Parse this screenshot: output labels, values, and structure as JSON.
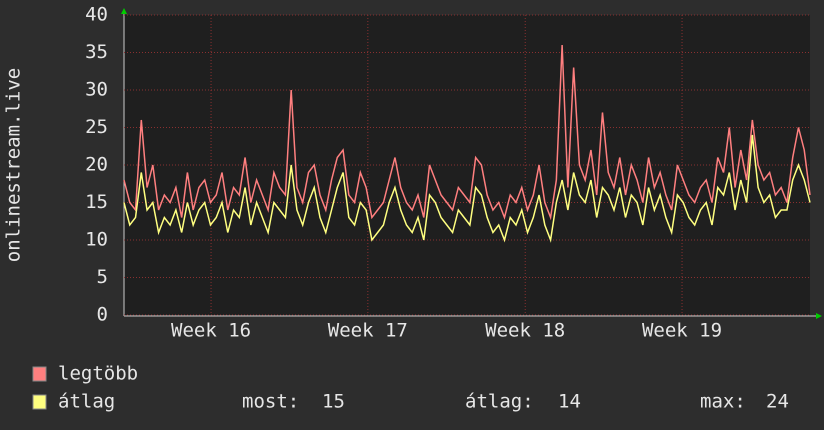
{
  "chart_data": {
    "type": "line",
    "y_label": "onlinestream.live",
    "ylim": [
      0,
      40
    ],
    "yticks": [
      0,
      5,
      10,
      15,
      20,
      25,
      30,
      35,
      40
    ],
    "grid": true,
    "xlim": [
      0,
      119
    ],
    "xticks": [
      {
        "value": 15.1,
        "label": "Week 16"
      },
      {
        "value": 42.3,
        "label": "Week 17"
      },
      {
        "value": 69.6,
        "label": "Week 18"
      },
      {
        "value": 96.8,
        "label": "Week 19"
      }
    ],
    "series": [
      {
        "name": "legtöbb",
        "color": "#ff7f7f",
        "values": [
          18,
          15,
          14,
          26,
          17,
          20,
          14,
          16,
          15,
          17,
          13,
          19,
          14,
          17,
          18,
          15,
          16,
          19,
          14,
          17,
          16,
          21,
          15,
          18,
          16,
          14,
          19,
          17,
          16,
          30,
          17,
          15,
          19,
          20,
          16,
          14,
          18,
          21,
          22,
          16,
          15,
          19,
          17,
          13,
          14,
          15,
          18,
          21,
          17,
          15,
          14,
          16,
          13,
          20,
          18,
          16,
          15,
          14,
          17,
          16,
          15,
          21,
          20,
          16,
          14,
          15,
          13,
          16,
          15,
          17,
          14,
          16,
          20,
          15,
          13,
          18,
          36,
          17,
          33,
          20,
          18,
          22,
          16,
          27,
          19,
          17,
          21,
          16,
          20,
          18,
          15,
          21,
          17,
          19,
          16,
          14,
          20,
          18,
          16,
          15,
          17,
          18,
          15,
          21,
          19,
          25,
          17,
          22,
          18,
          26,
          20,
          18,
          19,
          16,
          17,
          15,
          21,
          25,
          22,
          16
        ]
      },
      {
        "name": "átlag",
        "color": "#ffff80",
        "values": [
          15,
          12,
          13,
          19,
          14,
          15,
          11,
          13,
          12,
          14,
          11,
          15,
          12,
          14,
          15,
          12,
          13,
          15,
          11,
          14,
          13,
          17,
          12,
          15,
          13,
          11,
          15,
          14,
          13,
          20,
          14,
          12,
          15,
          17,
          13,
          11,
          14,
          17,
          19,
          13,
          12,
          15,
          14,
          10,
          11,
          12,
          15,
          17,
          14,
          12,
          11,
          13,
          10,
          16,
          15,
          13,
          12,
          11,
          14,
          13,
          12,
          17,
          16,
          13,
          11,
          12,
          10,
          13,
          12,
          14,
          11,
          13,
          16,
          12,
          10,
          15,
          18,
          14,
          19,
          16,
          15,
          18,
          13,
          17,
          16,
          14,
          17,
          13,
          16,
          15,
          12,
          17,
          14,
          16,
          13,
          11,
          16,
          15,
          13,
          12,
          14,
          15,
          12,
          17,
          16,
          19,
          14,
          18,
          15,
          24,
          17,
          15,
          16,
          13,
          14,
          14,
          18,
          20,
          18,
          15
        ]
      }
    ],
    "stats": [
      {
        "label": "most:",
        "value": 15
      },
      {
        "label": "átlag:",
        "value": 14
      },
      {
        "label": "max:",
        "value": 24
      }
    ]
  }
}
